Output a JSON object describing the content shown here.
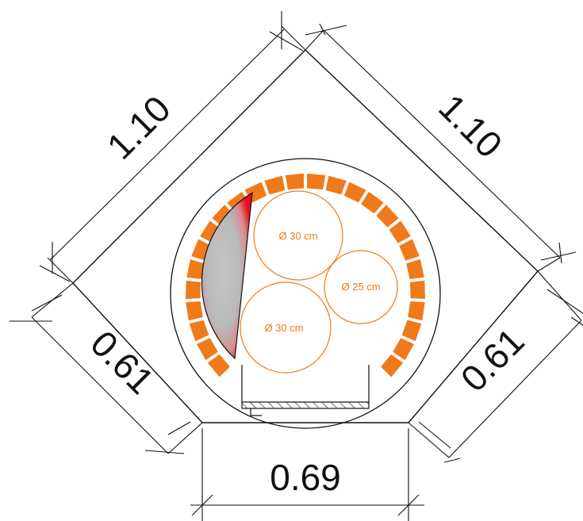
{
  "dimensions": {
    "top_left": "1.10",
    "top_right": "1.10",
    "bottom_left": "0.61",
    "bottom_right": "0.61",
    "bottom": "0.69"
  },
  "pipes": [
    {
      "label": "Ø 30 cm"
    },
    {
      "label": "Ø 25 cm"
    },
    {
      "label": "Ø 30 cm"
    }
  ],
  "colors": {
    "line": "#111111",
    "brick": "#f07a1a",
    "brick_stroke": "#ffffff",
    "pipe": "#f07a1a",
    "heat_hot": "#e8101e",
    "heat_cool": "#c8c8c8"
  }
}
